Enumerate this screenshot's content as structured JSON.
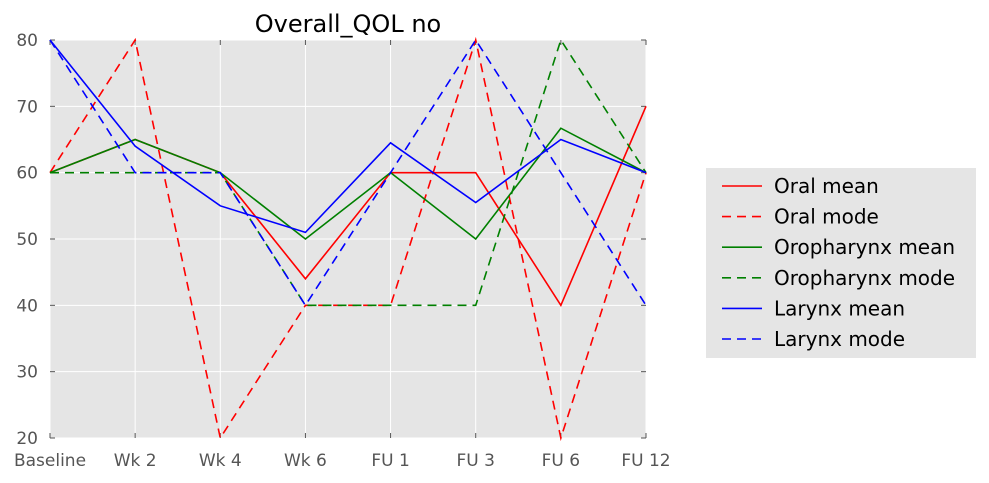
{
  "chart_data": {
    "type": "line",
    "title": "Overall_QOL no",
    "xlabel": "",
    "ylabel": "",
    "categories": [
      "Baseline",
      "Wk 2",
      "Wk 4",
      "Wk 6",
      "FU 1",
      "FU 3",
      "FU 6",
      "FU 12"
    ],
    "ylim": [
      20,
      80
    ],
    "yticks": [
      20,
      30,
      40,
      50,
      60,
      70,
      80
    ],
    "grid": true,
    "legend_placement": "right",
    "background": "#e5e5e5",
    "series": [
      {
        "name": "Oral mean",
        "color": "#ff0000",
        "style": "solid",
        "values": [
          60,
          65,
          60,
          44,
          60,
          60,
          40,
          70
        ]
      },
      {
        "name": "Oral mode",
        "color": "#ff0000",
        "style": "dashed",
        "values": [
          60,
          80,
          20,
          40,
          40,
          80,
          20,
          60
        ]
      },
      {
        "name": "Oropharynx mean",
        "color": "#008000",
        "style": "solid",
        "values": [
          60,
          65,
          60,
          50,
          60,
          50,
          66.7,
          60
        ]
      },
      {
        "name": "Oropharynx mode",
        "color": "#008000",
        "style": "dashed",
        "values": [
          60,
          60,
          60,
          40,
          40,
          40,
          80,
          60
        ]
      },
      {
        "name": "Larynx mean",
        "color": "#0000ff",
        "style": "solid",
        "values": [
          80,
          64,
          55,
          51,
          64.5,
          55.5,
          65,
          60
        ]
      },
      {
        "name": "Larynx mode",
        "color": "#0000ff",
        "style": "dashed",
        "values": [
          80,
          60,
          60,
          40,
          60,
          80,
          60,
          40
        ]
      }
    ]
  }
}
